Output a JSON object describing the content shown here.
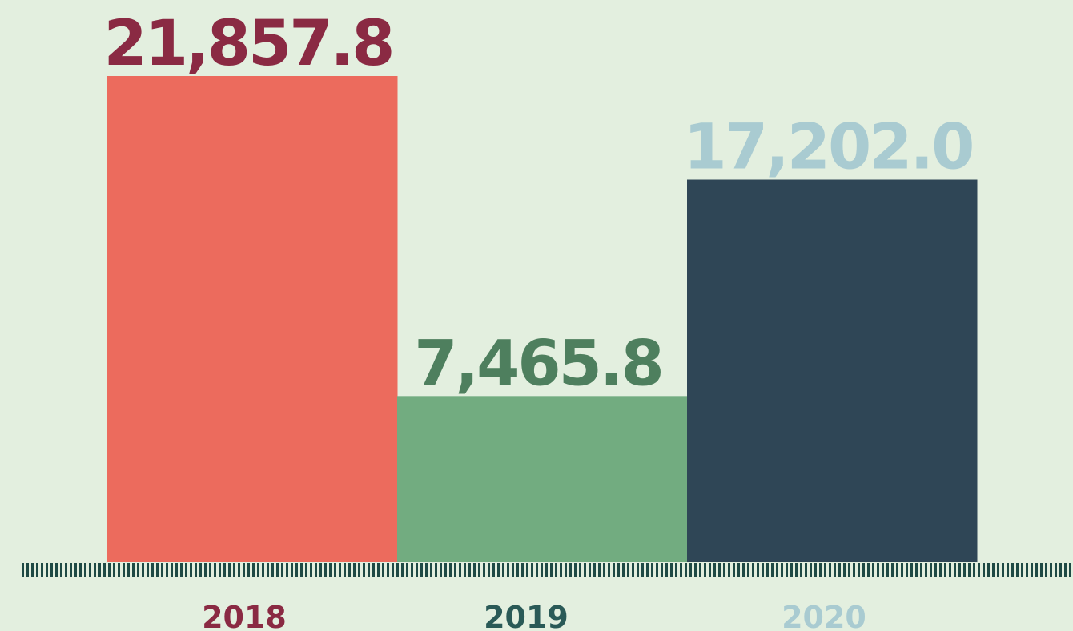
{
  "chart_data": {
    "type": "bar",
    "categories": [
      "2018",
      "2019",
      "2020"
    ],
    "values": [
      21857.8,
      7465.8,
      17202.0
    ],
    "value_labels": [
      "21,857.8",
      "7,465.8",
      "17,202.0"
    ],
    "colors": [
      "#ec6b5d",
      "#72ac80",
      "#2f4656"
    ],
    "value_label_colors": [
      "#8a2a43",
      "#4e7f5e",
      "#a9cbd1"
    ],
    "category_label_colors": [
      "#8a2a43",
      "#2a5a57",
      "#a9cbd1"
    ]
  }
}
